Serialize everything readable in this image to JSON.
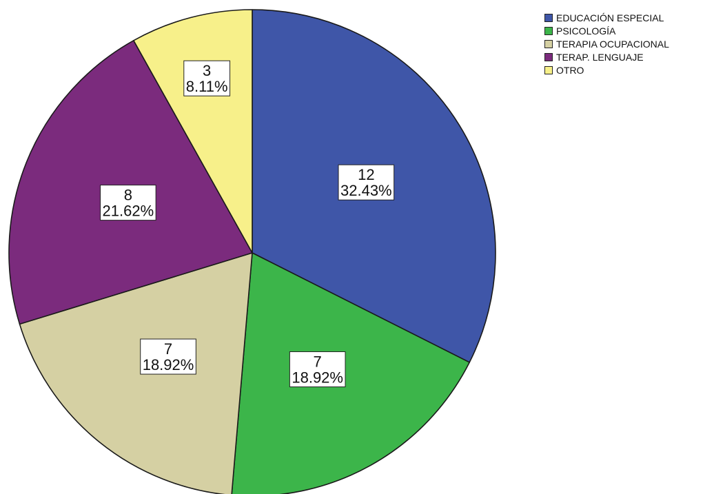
{
  "chart_data": {
    "type": "pie",
    "legend_position": "top-right",
    "slices": [
      {
        "name": "EDUCACIÓN ESPECIAL",
        "value": 12,
        "percent": "32.43%",
        "color": "#3f56a8"
      },
      {
        "name": "PSICOLOGÍA",
        "value": 7,
        "percent": "18.92%",
        "color": "#3cb54a"
      },
      {
        "name": "TERAPIA OCUPACIONAL",
        "value": 7,
        "percent": "18.92%",
        "color": "#d5d0a3"
      },
      {
        "name": "TERAP. LENGUAJE",
        "value": 8,
        "percent": "21.62%",
        "color": "#7b2b7d"
      },
      {
        "name": "OTRO",
        "value": 3,
        "percent": "8.11%",
        "color": "#f7f08a"
      }
    ]
  }
}
